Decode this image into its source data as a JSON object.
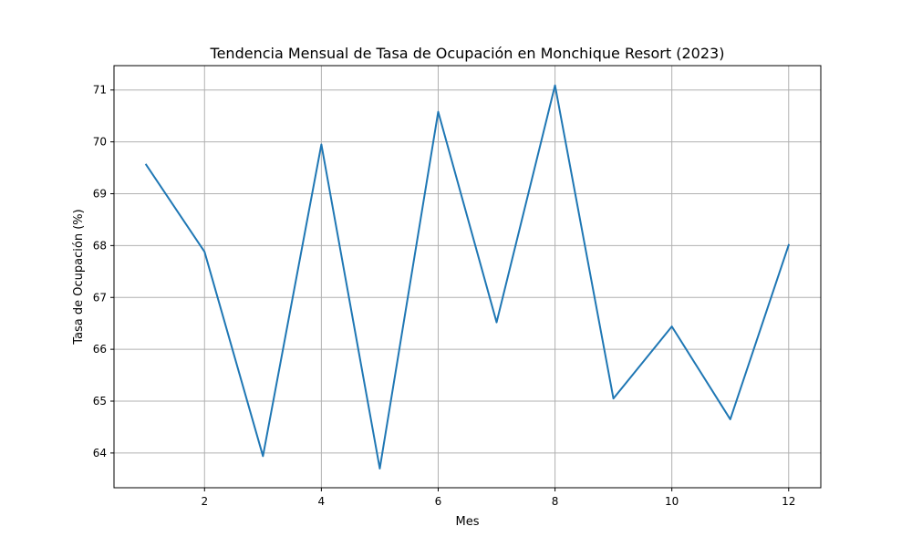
{
  "chart_data": {
    "type": "line",
    "title": "Tendencia Mensual de Tasa de Ocupación en Monchique Resort (2023)",
    "xlabel": "Mes",
    "ylabel": "Tasa de Ocupación (%)",
    "xlim": [
      0.45,
      12.55
    ],
    "ylim": [
      63.33,
      71.47
    ],
    "xticks": [
      2,
      4,
      6,
      8,
      10,
      12
    ],
    "yticks": [
      64,
      65,
      66,
      67,
      68,
      69,
      70,
      71
    ],
    "grid": true,
    "series": [
      {
        "color": "#1f77b4",
        "x": [
          1,
          2,
          3,
          4,
          5,
          6,
          7,
          8,
          9,
          10,
          11,
          12
        ],
        "values": [
          69.56,
          67.88,
          63.94,
          69.95,
          63.7,
          70.58,
          66.52,
          71.09,
          65.05,
          66.44,
          64.65,
          68.01
        ]
      }
    ]
  }
}
